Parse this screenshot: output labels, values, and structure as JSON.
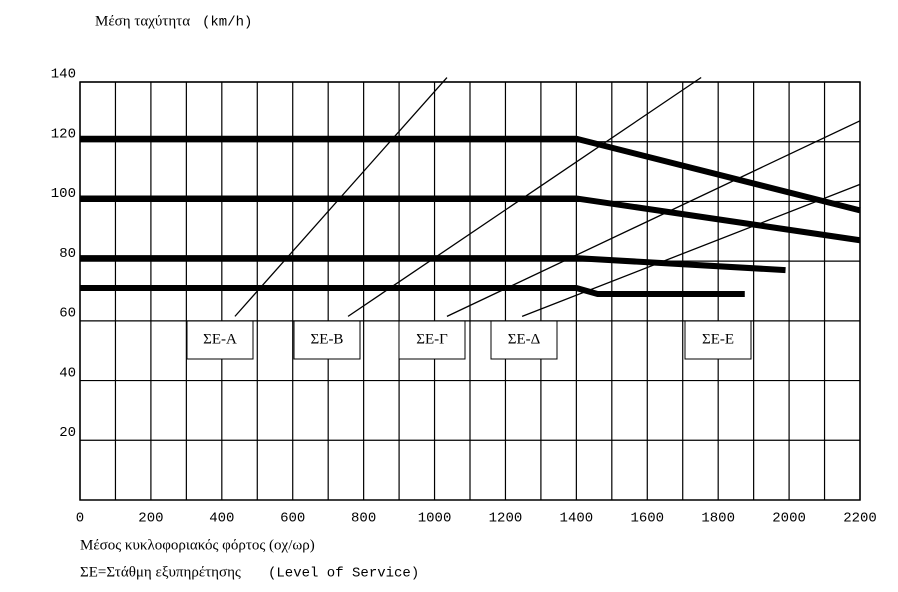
{
  "chart_data": {
    "type": "line",
    "title": "Μέση ταχύτητα",
    "title_unit": "(km/h)",
    "x_label": "Μέσος κυκλοφοριακός φόρτος (οχ/ωρ)",
    "note": "ΣΕ=Στάθμη εξυπηρέτησης",
    "note_en": "(Level of Service)",
    "xlim": [
      0,
      2200
    ],
    "ylim": [
      0,
      140
    ],
    "xticks": [
      0,
      200,
      400,
      600,
      800,
      1000,
      1200,
      1400,
      1600,
      1800,
      2000,
      2200
    ],
    "xminor_ticks": [
      100,
      300,
      500,
      700,
      900,
      1100,
      1300,
      1500,
      1700,
      1900,
      2100
    ],
    "yticks": [
      20,
      40,
      60,
      80,
      100,
      120,
      140
    ],
    "grid": true,
    "color": "#000000",
    "series": [
      {
        "x": [
          0,
          1400,
          2200
        ],
        "values": [
          121,
          121,
          97
        ]
      },
      {
        "x": [
          0,
          1400,
          2200
        ],
        "values": [
          101,
          101,
          87
        ]
      },
      {
        "x": [
          0,
          1400,
          1990
        ],
        "values": [
          81,
          81,
          77
        ]
      },
      {
        "x": [
          0,
          1400,
          1460,
          1875
        ],
        "values": [
          71,
          71,
          69,
          69
        ]
      }
    ],
    "los_boundaries": [
      {
        "x": [
          437,
          1035
        ],
        "values": [
          61.5,
          141.5
        ]
      },
      {
        "x": [
          756,
          1752
        ],
        "values": [
          61.5,
          141.5
        ]
      },
      {
        "x": [
          1035,
          2200
        ],
        "values": [
          61.5,
          127
        ]
      },
      {
        "x": [
          1247,
          2200
        ],
        "values": [
          61.5,
          105.7
        ]
      }
    ],
    "los_labels": [
      "ΣΕ-Α",
      "ΣΕ-Β",
      "ΣΕ-Γ",
      "ΣΕ-Δ",
      "ΣΕ-Ε"
    ]
  }
}
